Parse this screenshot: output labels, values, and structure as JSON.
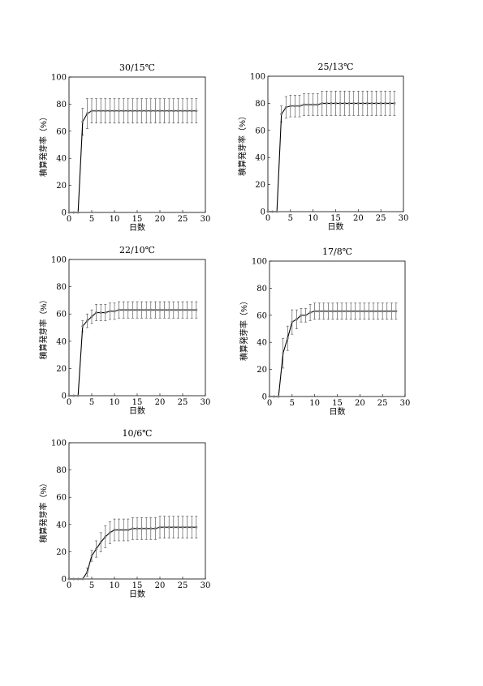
{
  "chart_data": [
    {
      "type": "line",
      "title": "30/15℃",
      "xlabel": "日数",
      "ylabel": "積算発芽率（%）",
      "x": [
        0,
        1,
        2,
        3,
        4,
        5,
        6,
        7,
        8,
        9,
        10,
        11,
        12,
        13,
        14,
        15,
        16,
        17,
        18,
        19,
        20,
        21,
        22,
        23,
        24,
        25,
        26,
        27,
        28
      ],
      "series": [
        {
          "color": "#000000",
          "values": [
            0,
            0,
            0,
            67,
            73,
            75,
            75,
            75,
            75,
            75,
            75,
            75,
            75,
            75,
            75,
            75,
            75,
            75,
            75,
            75,
            75,
            75,
            75,
            75,
            75,
            75,
            75,
            75,
            75
          ],
          "errors": [
            0,
            0,
            0,
            10,
            11,
            9,
            9,
            9,
            9,
            9,
            9,
            9,
            9,
            9,
            9,
            9,
            9,
            9,
            9,
            9,
            9,
            9,
            9,
            9,
            9,
            9,
            9,
            9,
            9
          ]
        }
      ],
      "xlim": [
        0,
        30
      ],
      "ylim": [
        0,
        100
      ],
      "xticks": [
        0,
        5,
        10,
        15,
        20,
        25,
        30
      ],
      "yticks": [
        0,
        20,
        40,
        60,
        80,
        100
      ]
    },
    {
      "type": "line",
      "title": "25/13℃",
      "xlabel": "日数",
      "ylabel": "積算発芽率（%）",
      "x": [
        0,
        1,
        2,
        3,
        4,
        5,
        6,
        7,
        8,
        9,
        10,
        11,
        12,
        13,
        14,
        15,
        16,
        17,
        18,
        19,
        20,
        21,
        22,
        23,
        24,
        25,
        26,
        27,
        28
      ],
      "series": [
        {
          "color": "#000000",
          "values": [
            0,
            0,
            0,
            72,
            77,
            78,
            78,
            78,
            79,
            79,
            79,
            79,
            80,
            80,
            80,
            80,
            80,
            80,
            80,
            80,
            80,
            80,
            80,
            80,
            80,
            80,
            80,
            80,
            80
          ],
          "errors": [
            0,
            0,
            0,
            6,
            8,
            8,
            8,
            8,
            8,
            8,
            8,
            8,
            9,
            9,
            9,
            9,
            9,
            9,
            9,
            9,
            9,
            9,
            9,
            9,
            9,
            9,
            9,
            9,
            9
          ]
        }
      ],
      "xlim": [
        0,
        30
      ],
      "ylim": [
        0,
        100
      ],
      "xticks": [
        0,
        5,
        10,
        15,
        20,
        25,
        30
      ],
      "yticks": [
        0,
        20,
        40,
        60,
        80,
        100
      ]
    },
    {
      "type": "line",
      "title": "22/10℃",
      "xlabel": "日数",
      "ylabel": "積算発芽率（%）",
      "x": [
        0,
        1,
        2,
        3,
        4,
        5,
        6,
        7,
        8,
        9,
        10,
        11,
        12,
        13,
        14,
        15,
        16,
        17,
        18,
        19,
        20,
        21,
        22,
        23,
        24,
        25,
        26,
        27,
        28
      ],
      "series": [
        {
          "color": "#000000",
          "values": [
            0,
            0,
            0,
            51,
            55,
            58,
            61,
            61,
            61,
            62,
            62,
            63,
            63,
            63,
            63,
            63,
            63,
            63,
            63,
            63,
            63,
            63,
            63,
            63,
            63,
            63,
            63,
            63,
            63
          ],
          "errors": [
            0,
            0,
            0,
            4,
            5,
            5,
            6,
            6,
            6,
            6,
            6,
            6,
            6,
            6,
            6,
            6,
            6,
            6,
            6,
            6,
            6,
            6,
            6,
            6,
            6,
            6,
            6,
            6,
            6
          ]
        }
      ],
      "xlim": [
        0,
        30
      ],
      "ylim": [
        0,
        100
      ],
      "xticks": [
        0,
        5,
        10,
        15,
        20,
        25,
        30
      ],
      "yticks": [
        0,
        20,
        40,
        60,
        80,
        100
      ]
    },
    {
      "type": "line",
      "title": "17/8℃",
      "xlabel": "日数",
      "ylabel": "積算発芽率（%）",
      "x": [
        0,
        1,
        2,
        3,
        4,
        5,
        6,
        7,
        8,
        9,
        10,
        11,
        12,
        13,
        14,
        15,
        16,
        17,
        18,
        19,
        20,
        21,
        22,
        23,
        24,
        25,
        26,
        27,
        28
      ],
      "series": [
        {
          "color": "#000000",
          "values": [
            0,
            0,
            0,
            32,
            43,
            55,
            57,
            60,
            60,
            62,
            63,
            63,
            63,
            63,
            63,
            63,
            63,
            63,
            63,
            63,
            63,
            63,
            63,
            63,
            63,
            63,
            63,
            63,
            63
          ],
          "errors": [
            0,
            0,
            0,
            11,
            9,
            9,
            7,
            5,
            5,
            6,
            6,
            6,
            6,
            6,
            6,
            6,
            6,
            6,
            6,
            6,
            6,
            6,
            6,
            6,
            6,
            6,
            6,
            6,
            6
          ]
        }
      ],
      "xlim": [
        0,
        30
      ],
      "ylim": [
        0,
        100
      ],
      "xticks": [
        0,
        5,
        10,
        15,
        20,
        25,
        30
      ],
      "yticks": [
        0,
        20,
        40,
        60,
        80,
        100
      ]
    },
    {
      "type": "line",
      "title": "10/6℃",
      "xlabel": "日数",
      "ylabel": "積算発芽率（%）",
      "x": [
        0,
        1,
        2,
        3,
        4,
        5,
        6,
        7,
        8,
        9,
        10,
        11,
        12,
        13,
        14,
        15,
        16,
        17,
        18,
        19,
        20,
        21,
        22,
        23,
        24,
        25,
        26,
        27,
        28
      ],
      "series": [
        {
          "color": "#000000",
          "values": [
            0,
            0,
            0,
            0,
            5,
            17,
            22,
            27,
            31,
            34,
            36,
            36,
            36,
            36,
            37,
            37,
            37,
            37,
            37,
            37,
            38,
            38,
            38,
            38,
            38,
            38,
            38,
            38,
            38
          ],
          "errors": [
            0,
            0,
            0,
            0,
            3,
            4,
            6,
            7,
            8,
            8,
            8,
            8,
            8,
            8,
            8,
            8,
            8,
            8,
            8,
            8,
            8,
            8,
            8,
            8,
            8,
            8,
            8,
            8,
            8
          ]
        }
      ],
      "xlim": [
        0,
        30
      ],
      "ylim": [
        0,
        100
      ],
      "xticks": [
        0,
        5,
        10,
        15,
        20,
        25,
        30
      ],
      "yticks": [
        0,
        20,
        40,
        60,
        80,
        100
      ]
    }
  ]
}
